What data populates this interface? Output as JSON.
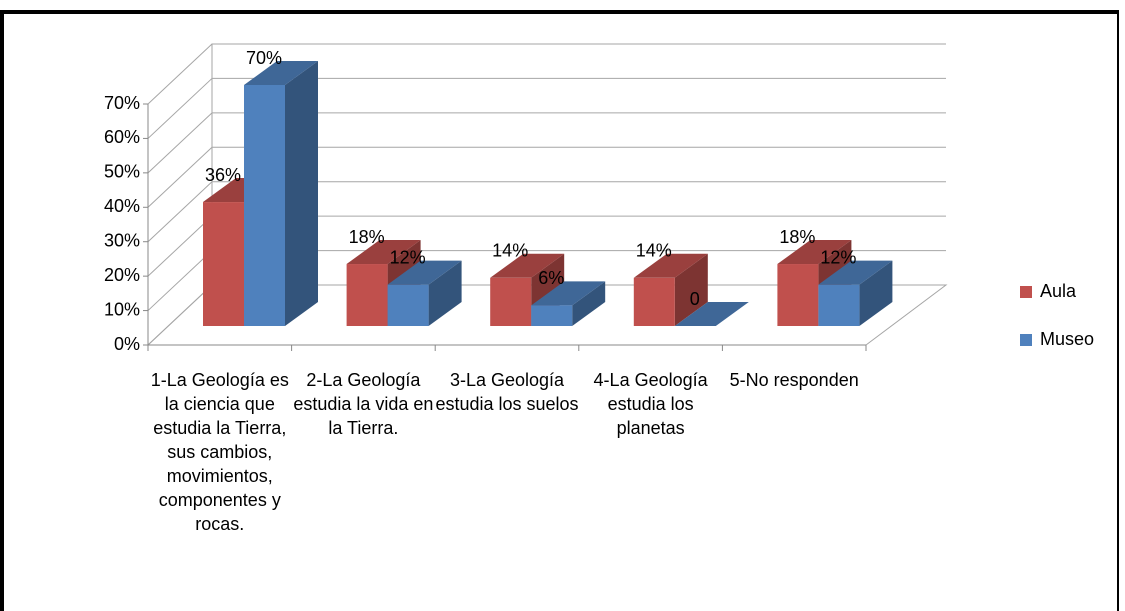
{
  "chart_data": {
    "type": "bar3d",
    "categories": [
      "1-La Geología es la ciencia que estudia la Tierra, sus cambios, movimientos, componentes y rocas.",
      "2-La Geología estudia la vida en la Tierra.",
      "3-La Geología estudia los suelos",
      "4-La Geología estudia los planetas",
      "5-No responden"
    ],
    "series": [
      {
        "name": "Aula",
        "color": "#c0504d",
        "values": [
          36,
          18,
          14,
          14,
          18
        ],
        "value_labels": [
          "36%",
          "18%",
          "14%",
          "14%",
          "18%"
        ]
      },
      {
        "name": "Museo",
        "color": "#4f81bd",
        "values": [
          70,
          12,
          6,
          0,
          12
        ],
        "value_labels": [
          "70%",
          "12%",
          "6%",
          "0",
          "12%"
        ]
      }
    ],
    "ylim": [
      0,
      70
    ],
    "yticks": [
      {
        "value": 0,
        "label": "0%"
      },
      {
        "value": 10,
        "label": "10%"
      },
      {
        "value": 20,
        "label": "20%"
      },
      {
        "value": 30,
        "label": "30%"
      },
      {
        "value": 40,
        "label": "40%"
      },
      {
        "value": 50,
        "label": "50%"
      },
      {
        "value": 60,
        "label": "60%"
      },
      {
        "value": 70,
        "label": "70%"
      }
    ],
    "grid": true,
    "legend": "right"
  }
}
